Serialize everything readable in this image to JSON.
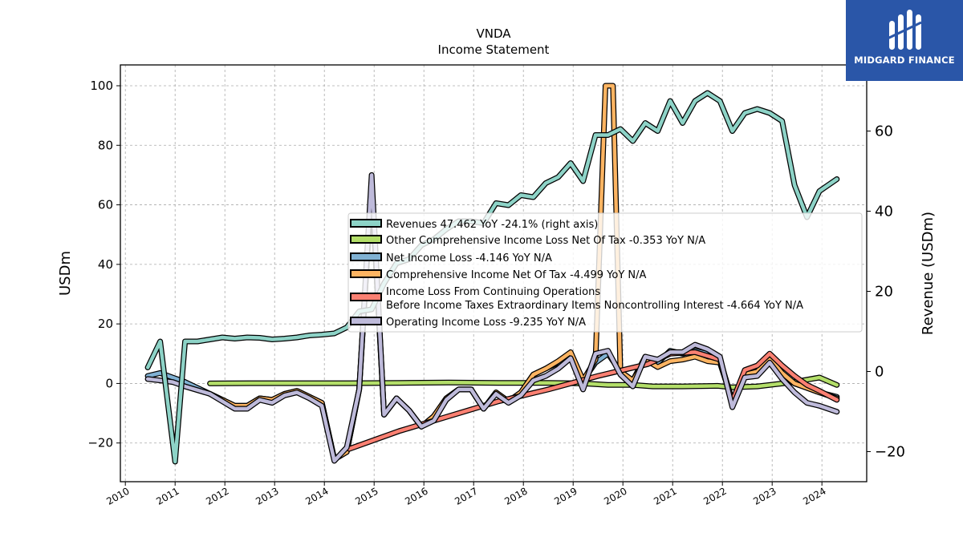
{
  "chart_data": {
    "type": "line",
    "title": "VNDA",
    "subtitle": "Income Statement",
    "ylabel_left": "USDm",
    "ylabel_right": "Revenue (USDm)",
    "xlim": [
      2009.9,
      2024.9
    ],
    "ylim_left": [
      -33,
      107
    ],
    "ylim_right": [
      -27.5,
      76.5
    ],
    "x_ticks": [
      2010,
      2011,
      2012,
      2013,
      2014,
      2015,
      2016,
      2017,
      2018,
      2019,
      2020,
      2021,
      2022,
      2023,
      2024
    ],
    "x_tick_labels": [
      "2010",
      "2011",
      "2012",
      "2013",
      "2014",
      "2015",
      "2016",
      "2017",
      "2018",
      "2019",
      "2020",
      "2021",
      "2022",
      "2023",
      "2024"
    ],
    "y_ticks_left": [
      -20,
      0,
      20,
      40,
      60,
      80,
      100
    ],
    "y_tick_labels_left": [
      "−20",
      "0",
      "20",
      "40",
      "60",
      "80",
      "100"
    ],
    "y_ticks_right": [
      -20,
      0,
      20,
      40,
      60
    ],
    "y_tick_labels_right": [
      "−20",
      "0",
      "20",
      "40",
      "60"
    ],
    "grid": true,
    "legend_placement": "center-right",
    "series": [
      {
        "name": "Revenues  47.462 YoY -24.1% (right axis)",
        "axis": "right",
        "color": "#8dd3c7",
        "points": [
          [
            2010.45,
            1
          ],
          [
            2010.7,
            7.5
          ],
          [
            2011.0,
            -22.5
          ],
          [
            2011.2,
            7.5
          ],
          [
            2011.45,
            7.5
          ],
          [
            2011.7,
            8
          ],
          [
            2011.95,
            8.5
          ],
          [
            2012.2,
            8.2
          ],
          [
            2012.45,
            8.5
          ],
          [
            2012.7,
            8.4
          ],
          [
            2012.95,
            8
          ],
          [
            2013.2,
            8.2
          ],
          [
            2013.45,
            8.5
          ],
          [
            2013.7,
            9
          ],
          [
            2013.95,
            9.2
          ],
          [
            2014.2,
            9.5
          ],
          [
            2014.45,
            11
          ],
          [
            2014.7,
            15
          ],
          [
            2014.95,
            15.5
          ],
          [
            2015.2,
            22
          ],
          [
            2015.45,
            27
          ],
          [
            2015.7,
            28
          ],
          [
            2015.95,
            31.5
          ],
          [
            2016.2,
            33
          ],
          [
            2016.45,
            35.5
          ],
          [
            2016.7,
            37.5
          ],
          [
            2016.95,
            37.5
          ],
          [
            2017.2,
            37
          ],
          [
            2017.45,
            42
          ],
          [
            2017.7,
            41.5
          ],
          [
            2017.95,
            44
          ],
          [
            2018.2,
            43.5
          ],
          [
            2018.45,
            47
          ],
          [
            2018.7,
            48.5
          ],
          [
            2018.95,
            52
          ],
          [
            2019.2,
            47.5
          ],
          [
            2019.45,
            59
          ],
          [
            2019.7,
            59
          ],
          [
            2019.95,
            60.5
          ],
          [
            2020.2,
            57.5
          ],
          [
            2020.45,
            62
          ],
          [
            2020.7,
            60
          ],
          [
            2020.95,
            67.5
          ],
          [
            2021.2,
            62
          ],
          [
            2021.45,
            67.5
          ],
          [
            2021.7,
            69.5
          ],
          [
            2021.95,
            67.5
          ],
          [
            2022.2,
            60
          ],
          [
            2022.45,
            64.5
          ],
          [
            2022.7,
            65.5
          ],
          [
            2022.95,
            64.5
          ],
          [
            2023.2,
            62.5
          ],
          [
            2023.45,
            46.5
          ],
          [
            2023.7,
            38.5
          ],
          [
            2023.95,
            45
          ],
          [
            2024.3,
            48
          ]
        ]
      },
      {
        "name": "Other Comprehensive Income Loss Net Of Tax  -0.353 YoY N/A",
        "axis": "left",
        "color": "#b3de69",
        "points": [
          [
            2011.7,
            0
          ],
          [
            2012.5,
            0.1
          ],
          [
            2013.5,
            0.1
          ],
          [
            2014.5,
            0.1
          ],
          [
            2015.5,
            0.2
          ],
          [
            2016.5,
            0.3
          ],
          [
            2017.5,
            0.2
          ],
          [
            2018.5,
            0.2
          ],
          [
            2019.2,
            0
          ],
          [
            2019.7,
            -0.5
          ],
          [
            2020.2,
            -0.5
          ],
          [
            2020.6,
            -1
          ],
          [
            2021.2,
            -1
          ],
          [
            2021.9,
            -0.8
          ],
          [
            2022.2,
            -1.3
          ],
          [
            2022.7,
            -1
          ],
          [
            2022.95,
            -0.5
          ],
          [
            2023.45,
            0.5
          ],
          [
            2023.95,
            2
          ],
          [
            2024.3,
            -0.5
          ]
        ]
      },
      {
        "name": "Net Income Loss  -4.146 YoY N/A",
        "axis": "left",
        "color": "#80b1d3",
        "points": [
          [
            2010.45,
            2.5
          ],
          [
            2010.7,
            3.5
          ],
          [
            2010.95,
            2
          ],
          [
            2011.2,
            0.5
          ],
          [
            2011.7,
            -3.5
          ],
          [
            2012.2,
            -7.5
          ],
          [
            2012.45,
            -7.5
          ],
          [
            2012.7,
            -5
          ],
          [
            2012.95,
            -5.5
          ],
          [
            2013.2,
            -3.5
          ],
          [
            2013.45,
            -2.5
          ],
          [
            2013.7,
            -4.5
          ],
          [
            2013.95,
            -6.5
          ],
          [
            2014.2,
            -25.5
          ],
          [
            2014.45,
            -23
          ],
          [
            2014.7,
            -2
          ],
          [
            2014.95,
            67
          ],
          [
            2015.2,
            -10.5
          ],
          [
            2015.45,
            -5
          ],
          [
            2015.7,
            -9
          ],
          [
            2015.95,
            -14.5
          ],
          [
            2016.2,
            -11
          ],
          [
            2016.45,
            -5
          ],
          [
            2016.7,
            -2
          ],
          [
            2016.95,
            -2
          ],
          [
            2017.2,
            -8.5
          ],
          [
            2017.45,
            -3
          ],
          [
            2017.7,
            -6
          ],
          [
            2017.95,
            -3
          ],
          [
            2018.2,
            3
          ],
          [
            2018.45,
            5
          ],
          [
            2018.7,
            7
          ],
          [
            2018.95,
            10
          ],
          [
            2019.2,
            1
          ],
          [
            2019.45,
            7
          ],
          [
            2019.7,
            10
          ],
          [
            2019.95,
            4
          ],
          [
            2020.2,
            1
          ],
          [
            2020.45,
            9
          ],
          [
            2020.7,
            7
          ],
          [
            2020.95,
            11
          ],
          [
            2021.2,
            10
          ],
          [
            2021.45,
            11
          ],
          [
            2021.7,
            10
          ],
          [
            2021.95,
            8
          ],
          [
            2022.2,
            -6
          ],
          [
            2022.45,
            3
          ],
          [
            2022.7,
            4
          ],
          [
            2022.95,
            8
          ],
          [
            2023.2,
            3
          ],
          [
            2023.45,
            0
          ],
          [
            2023.7,
            -1.5
          ],
          [
            2023.95,
            -3
          ],
          [
            2024.3,
            -4.5
          ]
        ]
      },
      {
        "name": "Comprehensive Income Net Of Tax  -4.499 YoY N/A",
        "axis": "left",
        "color": "#fdb462",
        "points": [
          [
            2011.7,
            -3.5
          ],
          [
            2012.2,
            -7.5
          ],
          [
            2012.45,
            -7.5
          ],
          [
            2012.7,
            -5
          ],
          [
            2012.95,
            -5.5
          ],
          [
            2013.2,
            -3.5
          ],
          [
            2013.45,
            -2.5
          ],
          [
            2013.7,
            -4.5
          ],
          [
            2013.95,
            -6.5
          ],
          [
            2014.2,
            -25.5
          ],
          [
            2014.45,
            -23
          ],
          [
            2014.7,
            -2
          ],
          [
            2014.95,
            67
          ],
          [
            2015.2,
            -10.5
          ],
          [
            2015.45,
            -5
          ],
          [
            2015.7,
            -9
          ],
          [
            2015.95,
            -14.5
          ],
          [
            2016.2,
            -11
          ],
          [
            2016.45,
            -5
          ],
          [
            2016.7,
            -2
          ],
          [
            2016.95,
            -2
          ],
          [
            2017.2,
            -8.5
          ],
          [
            2017.45,
            -3
          ],
          [
            2017.7,
            -6
          ],
          [
            2017.95,
            -3
          ],
          [
            2018.2,
            3
          ],
          [
            2018.45,
            5
          ],
          [
            2018.7,
            7.5
          ],
          [
            2018.95,
            10.5
          ],
          [
            2019.2,
            1
          ],
          [
            2019.45,
            8
          ],
          [
            2019.65,
            100
          ],
          [
            2019.8,
            100
          ],
          [
            2019.95,
            4
          ],
          [
            2020.2,
            1
          ],
          [
            2020.45,
            8
          ],
          [
            2020.7,
            5.5
          ],
          [
            2020.95,
            7.5
          ],
          [
            2021.2,
            8
          ],
          [
            2021.45,
            9
          ],
          [
            2021.7,
            7.5
          ],
          [
            2021.95,
            7
          ],
          [
            2022.2,
            -6
          ],
          [
            2022.45,
            3
          ],
          [
            2022.7,
            4
          ],
          [
            2022.95,
            8.5
          ],
          [
            2023.2,
            3.5
          ],
          [
            2023.45,
            0
          ],
          [
            2023.7,
            -1.5
          ],
          [
            2023.95,
            -3
          ],
          [
            2024.3,
            -5
          ]
        ]
      },
      {
        "name": "Income Loss From Continuing Operations\nBefore Income Taxes Extraordinary Items Noncontrolling Interest  -4.664 YoY N/A",
        "axis": "left",
        "color": "#fb8072",
        "points": [
          [
            2014.5,
            -22
          ],
          [
            2015.5,
            -16
          ],
          [
            2016.5,
            -11
          ],
          [
            2017.5,
            -6
          ],
          [
            2018.5,
            -2
          ],
          [
            2019.5,
            2.5
          ],
          [
            2020.5,
            6.5
          ],
          [
            2020.95,
            10
          ],
          [
            2021.45,
            10.5
          ],
          [
            2021.95,
            8
          ],
          [
            2022.2,
            -6
          ],
          [
            2022.45,
            4.5
          ],
          [
            2022.7,
            6
          ],
          [
            2022.95,
            10
          ],
          [
            2023.2,
            6
          ],
          [
            2023.45,
            2.5
          ],
          [
            2023.7,
            -0.5
          ],
          [
            2023.95,
            -2.5
          ],
          [
            2024.3,
            -5.5
          ]
        ]
      },
      {
        "name": "Operating Income Loss  -9.235 YoY N/A",
        "axis": "left",
        "color": "#bebada",
        "points": [
          [
            2010.45,
            1.5
          ],
          [
            2010.7,
            1
          ],
          [
            2010.95,
            0.5
          ],
          [
            2011.2,
            -1
          ],
          [
            2011.7,
            -3.5
          ],
          [
            2012.2,
            -8.5
          ],
          [
            2012.45,
            -8.5
          ],
          [
            2012.7,
            -5.5
          ],
          [
            2012.95,
            -6.5
          ],
          [
            2013.2,
            -4
          ],
          [
            2013.45,
            -3
          ],
          [
            2013.7,
            -5
          ],
          [
            2013.95,
            -7.5
          ],
          [
            2014.2,
            -26
          ],
          [
            2014.45,
            -21.5
          ],
          [
            2014.7,
            -2
          ],
          [
            2014.95,
            70
          ],
          [
            2015.2,
            -10.5
          ],
          [
            2015.45,
            -5
          ],
          [
            2015.7,
            -9
          ],
          [
            2015.95,
            -14.5
          ],
          [
            2016.2,
            -12.5
          ],
          [
            2016.45,
            -5.5
          ],
          [
            2016.7,
            -2
          ],
          [
            2016.95,
            -2
          ],
          [
            2017.2,
            -8.5
          ],
          [
            2017.45,
            -3.5
          ],
          [
            2017.7,
            -6.5
          ],
          [
            2017.95,
            -4
          ],
          [
            2018.2,
            1
          ],
          [
            2018.45,
            2.5
          ],
          [
            2018.7,
            5
          ],
          [
            2018.95,
            8.5
          ],
          [
            2019.2,
            -2
          ],
          [
            2019.45,
            10
          ],
          [
            2019.7,
            11
          ],
          [
            2019.95,
            3
          ],
          [
            2020.2,
            -1
          ],
          [
            2020.45,
            9
          ],
          [
            2020.7,
            8
          ],
          [
            2020.95,
            10.5
          ],
          [
            2021.2,
            10.5
          ],
          [
            2021.45,
            13
          ],
          [
            2021.7,
            11.5
          ],
          [
            2021.95,
            9
          ],
          [
            2022.2,
            -8
          ],
          [
            2022.45,
            2
          ],
          [
            2022.7,
            2.5
          ],
          [
            2022.95,
            7
          ],
          [
            2023.2,
            1.5
          ],
          [
            2023.45,
            -3
          ],
          [
            2023.7,
            -6.5
          ],
          [
            2023.95,
            -7.5
          ],
          [
            2024.3,
            -9.5
          ]
        ]
      }
    ]
  },
  "branding": {
    "logo_text": "MIDGARD FINANCE",
    "logo_bg": "#2a56a8"
  }
}
